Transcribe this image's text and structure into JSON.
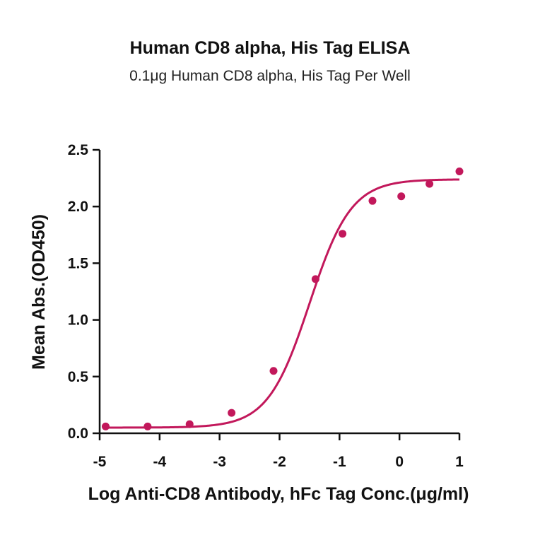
{
  "chart_data": {
    "type": "scatter",
    "title": "Human CD8 alpha, His Tag ELISA",
    "subtitle": "0.1μg Human CD8 alpha, His Tag Per Well",
    "xlabel": "Log Anti-CD8 Antibody, hFc Tag Conc.(μg/ml)",
    "ylabel": "Mean Abs.(OD450)",
    "xlim": [
      -5,
      1
    ],
    "ylim": [
      0,
      2.5
    ],
    "x_ticks": [
      -5,
      -4,
      -3,
      -2,
      -1,
      0,
      1
    ],
    "y_ticks": [
      0.0,
      0.5,
      1.0,
      1.5,
      2.0,
      2.5
    ],
    "x_tick_labels": [
      "-5",
      "-4",
      "-3",
      "-2",
      "-1",
      "0",
      "1"
    ],
    "y_tick_labels": [
      "0.0",
      "0.5",
      "1.0",
      "1.5",
      "2.0",
      "2.5"
    ],
    "grid": false,
    "series": [
      {
        "x": [
          -4.9,
          -4.2,
          -3.5,
          -2.8,
          -2.1,
          -1.4,
          -0.95,
          -0.45,
          0.03,
          0.5,
          1.0
        ],
        "y": [
          0.06,
          0.06,
          0.08,
          0.18,
          0.55,
          1.36,
          1.76,
          2.05,
          2.09,
          2.2,
          2.31
        ],
        "color": "#c2185b"
      }
    ],
    "fit_curve": {
      "model": "4PL",
      "bottom": 0.05,
      "top": 2.24,
      "log_ec50": -1.5,
      "hill_slope": 1.25,
      "color": "#c2185b"
    }
  }
}
